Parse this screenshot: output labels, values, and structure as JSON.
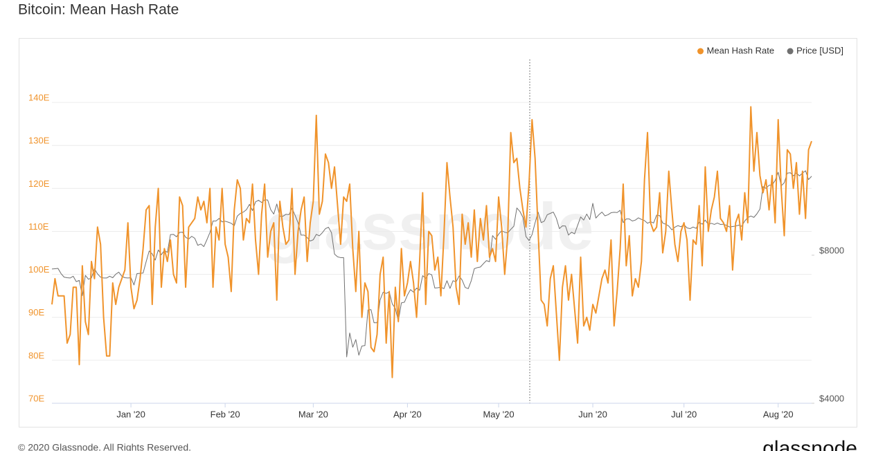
{
  "chart_data": {
    "type": "line",
    "title": "Bitcoin: Mean Hash Rate",
    "footer": "© 2020 Glassnode. All Rights Reserved.",
    "logo": "glassnode",
    "watermark": "glassnode",
    "legend": "top-right",
    "grid": true,
    "ylim": [
      70,
      150
    ],
    "yticks": [
      {
        "value": 70,
        "label": "70E"
      },
      {
        "value": 80,
        "label": "80E"
      },
      {
        "value": 90,
        "label": "90E"
      },
      {
        "value": 100,
        "label": "100E"
      },
      {
        "value": 110,
        "label": "110E"
      },
      {
        "value": 120,
        "label": "120E"
      },
      {
        "value": 130,
        "label": "130E"
      },
      {
        "value": 140,
        "label": "140E"
      }
    ],
    "y2lim": [
      4000,
      20000
    ],
    "y2log": true,
    "y2ticks": [
      {
        "value": 4000,
        "label": "$4000"
      },
      {
        "value": 8000,
        "label": "$8000"
      }
    ],
    "categories": [
      null,
      null,
      null,
      null,
      null,
      null,
      null,
      null,
      null,
      null,
      null,
      null,
      null,
      null,
      null,
      null,
      null,
      null,
      null,
      null,
      null,
      null,
      null,
      null,
      null,
      null,
      "Jan '20",
      null,
      null,
      null,
      null,
      null,
      null,
      null,
      null,
      null,
      null,
      null,
      null,
      null,
      null,
      null,
      null,
      null,
      null,
      null,
      null,
      null,
      null,
      null,
      null,
      null,
      null,
      null,
      null,
      null,
      null,
      "Feb '20",
      null,
      null,
      null,
      null,
      null,
      null,
      null,
      null,
      null,
      null,
      null,
      null,
      null,
      null,
      null,
      null,
      null,
      null,
      null,
      null,
      null,
      null,
      null,
      null,
      null,
      null,
      null,
      null,
      "Mar '20",
      null,
      null,
      null,
      null,
      null,
      null,
      null,
      null,
      null,
      null,
      null,
      null,
      null,
      null,
      null,
      null,
      null,
      null,
      null,
      null,
      null,
      null,
      null,
      null,
      null,
      null,
      null,
      null,
      null,
      null,
      "Apr '20",
      null,
      null,
      null,
      null,
      null,
      null,
      null,
      null,
      null,
      null,
      null,
      null,
      null,
      null,
      null,
      null,
      null,
      null,
      null,
      null,
      null,
      null,
      null,
      null,
      null,
      null,
      null,
      null,
      null,
      "May '20",
      null,
      null,
      null,
      null,
      null,
      null,
      null,
      null,
      null,
      null,
      null,
      null,
      null,
      null,
      null,
      null,
      null,
      null,
      null,
      null,
      null,
      null,
      null,
      null,
      null,
      null,
      null,
      null,
      null,
      null,
      "Jun '20",
      null,
      null,
      null,
      null,
      null,
      null,
      null,
      null,
      null,
      null,
      null,
      null,
      null,
      null,
      null,
      null,
      null,
      null,
      null,
      null,
      null,
      null,
      null,
      null,
      null,
      null,
      null,
      null,
      null,
      "Jul '20",
      null,
      null,
      null,
      null,
      null,
      null,
      null,
      null,
      null,
      null,
      null,
      null,
      null,
      null,
      null,
      null,
      null,
      null,
      null,
      null,
      null,
      null,
      null,
      null,
      null,
      null,
      null,
      null,
      null,
      null,
      "Aug '20",
      null,
      null,
      null,
      null,
      null,
      null,
      null,
      null,
      null,
      null,
      null
    ],
    "series": [
      {
        "name": "Mean Hash Rate",
        "color": "#f0932b",
        "values": [
          93,
          99,
          95,
          95,
          95,
          84,
          86,
          97,
          97,
          79,
          102,
          89,
          86,
          103,
          99,
          111,
          107,
          90,
          81,
          81,
          98,
          93,
          97,
          99,
          101,
          112,
          97,
          92,
          94,
          99,
          106,
          115,
          116,
          93,
          111,
          120,
          97,
          106,
          103,
          108,
          100,
          98,
          118,
          116,
          97,
          111,
          112,
          113,
          118,
          115,
          117,
          112,
          120,
          97,
          111,
          108,
          120,
          107,
          104,
          96,
          115,
          122,
          120,
          108,
          113,
          112,
          121,
          108,
          100,
          114,
          121,
          104,
          110,
          112,
          94,
          117,
          111,
          107,
          108,
          120,
          100,
          110,
          115,
          118,
          103,
          112,
          117,
          137,
          114,
          117,
          128,
          126,
          120,
          125,
          116,
          107,
          118,
          117,
          121,
          106,
          96,
          110,
          90,
          98,
          96,
          83,
          82,
          86,
          100,
          104,
          84,
          96,
          76,
          97,
          89,
          106,
          95,
          98,
          103,
          98,
          90,
          103,
          119,
          93,
          110,
          109,
          101,
          104,
          95,
          109,
          126,
          118,
          111,
          97,
          93,
          114,
          107,
          112,
          104,
          115,
          103,
          113,
          108,
          116,
          104,
          106,
          103,
          118,
          111,
          100,
          109,
          133,
          126,
          127,
          120,
          115,
          111,
          121,
          136,
          127,
          110,
          94,
          93,
          88,
          99,
          102,
          91,
          80,
          97,
          102,
          94,
          100,
          92,
          84,
          104,
          88,
          90,
          87,
          93,
          91,
          95,
          99,
          101,
          98,
          108,
          88,
          96,
          106,
          121,
          102,
          109,
          95,
          99,
          97,
          103,
          122,
          133,
          112,
          110,
          111,
          119,
          105,
          110,
          124,
          115,
          107,
          103,
          110,
          112,
          108,
          94,
          108,
          107,
          116,
          102,
          125,
          110,
          115,
          118,
          124,
          113,
          112,
          110,
          116,
          101,
          112,
          114,
          108,
          119,
          112,
          139,
          124,
          133,
          123,
          119,
          122,
          115,
          123,
          112,
          136,
          120,
          109,
          129,
          128,
          120,
          126,
          114,
          124,
          113,
          129,
          131
        ]
      },
      {
        "name": "Price [USD]",
        "color": "#707070",
        "axis": "y2",
        "values": [
          7500,
          7510,
          7520,
          7340,
          7220,
          7200,
          7190,
          7250,
          7070,
          7110,
          6620,
          7280,
          7150,
          7190,
          7510,
          7330,
          7220,
          7190,
          7190,
          7250,
          7200,
          7320,
          7390,
          7250,
          7200,
          7190,
          7200,
          6960,
          7340,
          7350,
          7360,
          7760,
          8160,
          8050,
          7820,
          8200,
          8020,
          8180,
          8110,
          8810,
          8820,
          8720,
          8900,
          8910,
          8700,
          8630,
          8740,
          8660,
          8380,
          8430,
          8330,
          8600,
          8900,
          9390,
          9390,
          9500,
          9350,
          9380,
          9340,
          9290,
          9180,
          9610,
          9730,
          9790,
          9900,
          10150,
          9860,
          10270,
          10350,
          10240,
          10370,
          10360,
          9900,
          9700,
          10170,
          9600,
          9600,
          9690,
          9670,
          9970,
          9650,
          9310,
          8790,
          8790,
          8690,
          8550,
          8600,
          8820,
          8760,
          8890,
          9060,
          9120,
          8890,
          8040,
          7940,
          7910,
          7910,
          4970,
          5560,
          5200,
          5390,
          5010,
          5230,
          5240,
          6190,
          6200,
          5830,
          5830,
          6490,
          6730,
          6690,
          6740,
          6370,
          6240,
          5880,
          6400,
          6420,
          6640,
          6810,
          6730,
          6860,
          6790,
          7270,
          7180,
          7340,
          7300,
          6860,
          6870,
          6890,
          6840,
          7100,
          6850,
          7100,
          7060,
          7260,
          7120,
          6880,
          6840,
          7100,
          7510,
          7550,
          7570,
          7690,
          7800,
          7760,
          8770,
          8620,
          8830,
          8970,
          8910,
          8880,
          9030,
          9160,
          9980,
          9820,
          9550,
          8730,
          8570,
          8810,
          9310,
          9790,
          9320,
          9380,
          9670,
          9730,
          9790,
          9510,
          9060,
          9180,
          9170,
          8790,
          8910,
          8840,
          9200,
          9570,
          9430,
          9700,
          9450,
          10200,
          9520,
          9670,
          9790,
          9620,
          9670,
          9760,
          9780,
          9770,
          9870,
          9320,
          9480,
          9480,
          9390,
          9430,
          9530,
          9460,
          9410,
          9290,
          9360,
          9300,
          9650,
          9630,
          9300,
          9250,
          9170,
          9010,
          9120,
          9190,
          9140,
          9230,
          9090,
          9060,
          9130,
          9070,
          9340,
          9250,
          9430,
          9240,
          9290,
          9240,
          9300,
          9240,
          9250,
          9200,
          9130,
          9150,
          9170,
          9210,
          9160,
          9390,
          9540,
          9610,
          9550,
          9710,
          9930,
          11030,
          10940,
          11100,
          11110,
          11350,
          11800,
          11070,
          11230,
          11750,
          11770,
          11600,
          11760,
          11600,
          11750,
          11880,
          11400,
          11580
        ]
      }
    ]
  }
}
